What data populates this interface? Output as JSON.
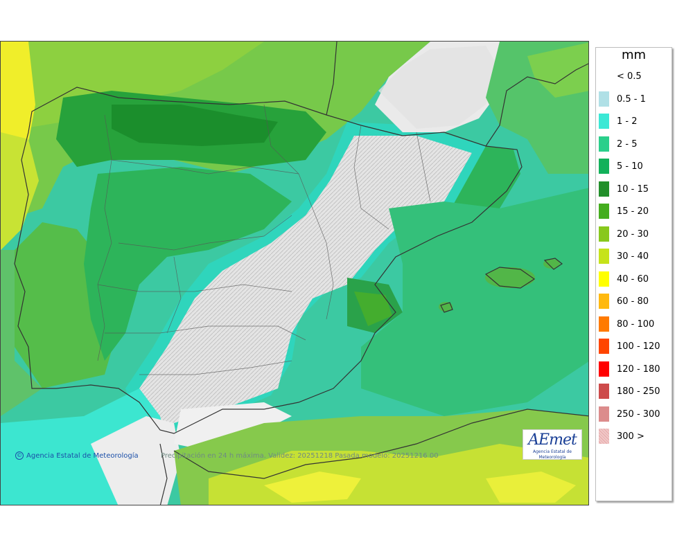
{
  "map": {
    "caption": "Precipitación en 24 h máxima. Validez: 20251218 Pasada modelo: 20251216 00",
    "copyright": "Agencia Estatal de Meteorología",
    "copyright_symbol": "©",
    "logo_word": "AEmet",
    "logo_sub": "Agencia Estatal de Meteorología"
  },
  "legend": {
    "title": "mm",
    "items": [
      {
        "label": "< 0.5",
        "color": "#ffffff"
      },
      {
        "label": "0.5 - 1",
        "color": "#b0e0e6"
      },
      {
        "label": "1 - 2",
        "color": "#3be8d5"
      },
      {
        "label": "2 - 5",
        "color": "#2acf8b"
      },
      {
        "label": "5 - 10",
        "color": "#12b15a"
      },
      {
        "label": "10 - 15",
        "color": "#228f2a"
      },
      {
        "label": "15 - 20",
        "color": "#44ad1e"
      },
      {
        "label": "20 - 30",
        "color": "#88c81d"
      },
      {
        "label": "30 - 40",
        "color": "#c6e31a"
      },
      {
        "label": "40 - 60",
        "color": "#ffff00"
      },
      {
        "label": "60 - 80",
        "color": "#ffb90f"
      },
      {
        "label": "80 - 100",
        "color": "#ff7a00"
      },
      {
        "label": "100 - 120",
        "color": "#ff4500"
      },
      {
        "label": "120 - 180",
        "color": "#ff0000"
      },
      {
        "label": "180 - 250",
        "color": "#cd4a4a"
      },
      {
        "label": "250 - 300",
        "color": "#dc8c8c"
      },
      {
        "label": "300 >",
        "color": "#f0c8c8"
      }
    ]
  }
}
